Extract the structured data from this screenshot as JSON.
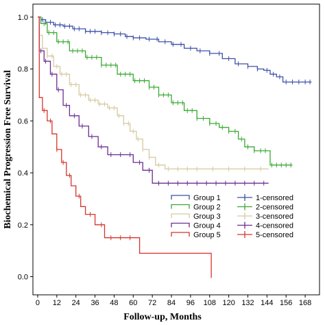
{
  "chart_data": {
    "type": "line",
    "subtype": "kaplan-meier",
    "xlabel": "Follow-up, Months",
    "ylabel": "Biochemical Progression Free Survival",
    "xlim": [
      -3,
      177
    ],
    "ylim": [
      -0.07,
      1.05
    ],
    "xticks": [
      0,
      12,
      24,
      36,
      48,
      60,
      72,
      84,
      96,
      108,
      120,
      132,
      144,
      156,
      168
    ],
    "yticks": [
      0.0,
      0.2,
      0.4,
      0.6,
      0.8,
      1.0
    ],
    "ytick_labels": [
      "0.0",
      "0.2",
      "0.4",
      "0.6",
      "0.8",
      "1.0"
    ],
    "grid": false,
    "legend_position": "bottom-right",
    "series": [
      {
        "name": "Group 1",
        "censored_label": "1-censored",
        "color": "#3b4fa8",
        "points": [
          [
            0,
            1.0
          ],
          [
            2,
            0.99
          ],
          [
            5,
            0.98
          ],
          [
            10,
            0.97
          ],
          [
            16,
            0.965
          ],
          [
            22,
            0.955
          ],
          [
            30,
            0.945
          ],
          [
            40,
            0.94
          ],
          [
            48,
            0.935
          ],
          [
            55,
            0.925
          ],
          [
            60,
            0.92
          ],
          [
            68,
            0.915
          ],
          [
            76,
            0.905
          ],
          [
            84,
            0.895
          ],
          [
            92,
            0.88
          ],
          [
            100,
            0.87
          ],
          [
            108,
            0.86
          ],
          [
            116,
            0.84
          ],
          [
            124,
            0.82
          ],
          [
            132,
            0.81
          ],
          [
            138,
            0.8
          ],
          [
            142,
            0.795
          ],
          [
            146,
            0.78
          ],
          [
            150,
            0.77
          ],
          [
            154,
            0.75
          ],
          [
            160,
            0.75
          ],
          [
            170,
            0.75
          ]
        ],
        "end": 172,
        "censor_times": [
          3,
          5,
          8,
          11,
          14,
          17,
          20,
          23,
          26,
          30,
          33,
          36,
          40,
          44,
          48,
          52,
          56,
          60,
          64,
          70,
          75,
          80,
          85,
          90,
          96,
          102,
          108,
          114,
          120,
          126,
          132,
          138,
          144,
          148,
          152,
          156,
          160,
          164,
          168,
          171
        ]
      },
      {
        "name": "Group 2",
        "censored_label": "2-censored",
        "color": "#3aa832",
        "points": [
          [
            0,
            1.0
          ],
          [
            2,
            0.975
          ],
          [
            6,
            0.94
          ],
          [
            12,
            0.905
          ],
          [
            20,
            0.87
          ],
          [
            30,
            0.845
          ],
          [
            40,
            0.815
          ],
          [
            50,
            0.78
          ],
          [
            60,
            0.755
          ],
          [
            70,
            0.73
          ],
          [
            76,
            0.7
          ],
          [
            84,
            0.67
          ],
          [
            92,
            0.64
          ],
          [
            100,
            0.61
          ],
          [
            108,
            0.59
          ],
          [
            114,
            0.575
          ],
          [
            120,
            0.56
          ],
          [
            126,
            0.53
          ],
          [
            130,
            0.5
          ],
          [
            136,
            0.485
          ],
          [
            144,
            0.485
          ],
          [
            146,
            0.43
          ],
          [
            148,
            0.43
          ]
        ],
        "end": 160,
        "censor_times": [
          4,
          7,
          10,
          13,
          16,
          19,
          22,
          25,
          28,
          31,
          34,
          37,
          40,
          43,
          46,
          49,
          52,
          55,
          58,
          61,
          64,
          67,
          70,
          73,
          76,
          79,
          82,
          85,
          88,
          91,
          94,
          97,
          100,
          104,
          108,
          112,
          116,
          120,
          124,
          128,
          132,
          136,
          140,
          143,
          147,
          150,
          153,
          156,
          159
        ]
      },
      {
        "name": "Group 3",
        "censored_label": "3-censored",
        "color": "#d4c9a0",
        "points": [
          [
            0,
            1.0
          ],
          [
            1,
            0.93
          ],
          [
            3,
            0.88
          ],
          [
            6,
            0.85
          ],
          [
            10,
            0.81
          ],
          [
            14,
            0.78
          ],
          [
            20,
            0.74
          ],
          [
            26,
            0.7
          ],
          [
            32,
            0.68
          ],
          [
            38,
            0.665
          ],
          [
            44,
            0.65
          ],
          [
            50,
            0.62
          ],
          [
            54,
            0.59
          ],
          [
            58,
            0.56
          ],
          [
            62,
            0.53
          ],
          [
            66,
            0.49
          ],
          [
            70,
            0.46
          ],
          [
            74,
            0.43
          ],
          [
            80,
            0.415
          ],
          [
            88,
            0.415
          ],
          [
            100,
            0.415
          ],
          [
            120,
            0.415
          ]
        ],
        "end": 145,
        "censor_times": [
          3,
          6,
          9,
          12,
          15,
          18,
          21,
          24,
          27,
          30,
          33,
          36,
          39,
          42,
          45,
          48,
          51,
          54,
          57,
          60,
          63,
          66,
          70,
          76,
          82,
          88,
          94,
          100,
          110,
          120,
          130,
          140
        ]
      },
      {
        "name": "Group 4",
        "censored_label": "4-censored",
        "color": "#6a2c91",
        "points": [
          [
            0,
            1.0
          ],
          [
            1,
            0.87
          ],
          [
            4,
            0.83
          ],
          [
            8,
            0.78
          ],
          [
            12,
            0.72
          ],
          [
            16,
            0.66
          ],
          [
            20,
            0.62
          ],
          [
            26,
            0.58
          ],
          [
            32,
            0.54
          ],
          [
            38,
            0.5
          ],
          [
            44,
            0.47
          ],
          [
            54,
            0.47
          ],
          [
            60,
            0.44
          ],
          [
            66,
            0.41
          ],
          [
            72,
            0.36
          ],
          [
            80,
            0.36
          ],
          [
            100,
            0.36
          ],
          [
            120,
            0.36
          ]
        ],
        "end": 145,
        "censor_times": [
          2,
          5,
          9,
          13,
          18,
          23,
          28,
          34,
          40,
          46,
          52,
          58,
          64,
          70,
          76,
          82,
          88,
          94,
          100,
          106,
          112,
          118,
          124,
          130,
          136,
          142
        ]
      },
      {
        "name": "Group 5",
        "censored_label": "5-censored",
        "color": "#d6332a",
        "points": [
          [
            0,
            1.0
          ],
          [
            1,
            0.69
          ],
          [
            3,
            0.64
          ],
          [
            6,
            0.6
          ],
          [
            9,
            0.55
          ],
          [
            12,
            0.49
          ],
          [
            15,
            0.44
          ],
          [
            18,
            0.39
          ],
          [
            21,
            0.35
          ],
          [
            24,
            0.31
          ],
          [
            27,
            0.27
          ],
          [
            30,
            0.24
          ],
          [
            36,
            0.2
          ],
          [
            42,
            0.15
          ],
          [
            48,
            0.15
          ],
          [
            56,
            0.15
          ],
          [
            62,
            0.15
          ],
          [
            64,
            0.09
          ],
          [
            100,
            0.09
          ],
          [
            108,
            0.09
          ]
        ],
        "end": 109,
        "end_value": -0.005,
        "censor_times": [
          4,
          8,
          12,
          16,
          20,
          26,
          33,
          40,
          46,
          52,
          58
        ]
      }
    ]
  }
}
